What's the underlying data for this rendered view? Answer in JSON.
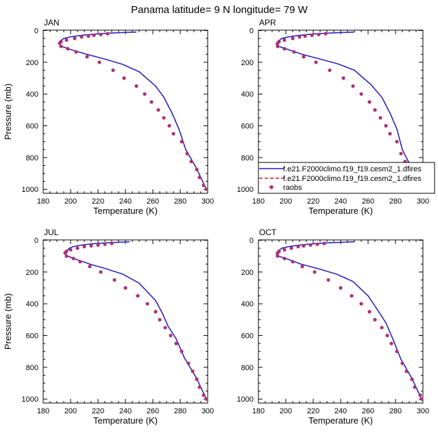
{
  "title": "Panama  latitude= 9 N longitude= 79 W",
  "colors": {
    "model1": "#1f1fbf",
    "model2": "#e01010",
    "obs": "#b03070",
    "axis": "#000000"
  },
  "legend": {
    "entries": [
      {
        "label": "f.e21.F2000climo.f19_f19.cesm2_1.dfires",
        "style": "solid",
        "color": "#1f1fbf"
      },
      {
        "label": "f.e21.F2000climo.f19_f19.cesm2_1.dfires",
        "style": "dashed",
        "color": "#e01010"
      },
      {
        "label": "raobs",
        "style": "dot",
        "color": "#b03070"
      }
    ]
  },
  "chart_data": [
    {
      "type": "line",
      "panel": "JAN",
      "xlabel": "Temperature (K)",
      "ylabel": "Pressure (mb)",
      "xlim": [
        180,
        300
      ],
      "ylim": [
        1025,
        0
      ],
      "xticks": [
        180,
        200,
        220,
        240,
        260,
        280,
        300
      ],
      "yticks": [
        0,
        200,
        400,
        600,
        800,
        1000
      ],
      "model": [
        [
          248,
          10
        ],
        [
          238,
          13
        ],
        [
          228,
          17
        ],
        [
          218,
          22
        ],
        [
          208,
          30
        ],
        [
          200,
          40
        ],
        [
          195,
          50
        ],
        [
          192,
          70
        ],
        [
          192,
          87
        ],
        [
          193,
          98
        ],
        [
          200,
          120
        ],
        [
          212,
          150
        ],
        [
          225,
          180
        ],
        [
          238,
          213
        ],
        [
          250,
          260
        ],
        [
          262,
          350
        ],
        [
          268,
          420
        ],
        [
          274,
          520
        ],
        [
          279,
          620
        ],
        [
          284,
          750
        ],
        [
          292,
          870
        ],
        [
          299,
          1000
        ]
      ],
      "obs": [
        [
          227,
          20
        ],
        [
          222,
          25
        ],
        [
          217,
          30
        ],
        [
          213,
          35
        ],
        [
          208,
          40
        ],
        [
          203,
          50
        ],
        [
          197,
          60
        ],
        [
          193,
          70
        ],
        [
          192,
          80
        ],
        [
          193,
          100
        ],
        [
          198,
          115
        ],
        [
          204,
          135
        ],
        [
          212,
          165
        ],
        [
          221,
          200
        ],
        [
          231,
          250
        ],
        [
          239,
          300
        ],
        [
          248,
          350
        ],
        [
          254,
          400
        ],
        [
          259,
          450
        ],
        [
          264,
          500
        ],
        [
          268,
          550
        ],
        [
          272,
          600
        ],
        [
          275,
          650
        ],
        [
          281,
          700
        ],
        [
          285,
          775
        ],
        [
          288,
          825
        ],
        [
          292,
          875
        ],
        [
          294,
          925
        ],
        [
          297,
          975
        ],
        [
          299,
          1000
        ]
      ]
    },
    {
      "type": "line",
      "panel": "APR",
      "xlabel": "Temperature (K)",
      "ylabel": "",
      "xlim": [
        180,
        300
      ],
      "ylim": [
        1025,
        0
      ],
      "xticks": [
        180,
        200,
        220,
        240,
        260,
        280,
        300
      ],
      "yticks": [
        0,
        200,
        400,
        600,
        800,
        1000
      ],
      "model": [
        [
          250,
          10
        ],
        [
          240,
          13
        ],
        [
          230,
          17
        ],
        [
          220,
          22
        ],
        [
          210,
          30
        ],
        [
          202,
          40
        ],
        [
          197,
          50
        ],
        [
          194,
          70
        ],
        [
          193,
          87
        ],
        [
          194,
          98
        ],
        [
          200,
          115
        ],
        [
          212,
          150
        ],
        [
          225,
          180
        ],
        [
          238,
          210
        ],
        [
          250,
          250
        ],
        [
          262,
          340
        ],
        [
          270,
          420
        ],
        [
          276,
          520
        ],
        [
          281,
          620
        ],
        [
          285,
          750
        ],
        [
          292,
          870
        ],
        [
          299,
          1000
        ]
      ],
      "obs": [
        [
          229,
          20
        ],
        [
          224,
          25
        ],
        [
          219,
          30
        ],
        [
          214,
          35
        ],
        [
          210,
          40
        ],
        [
          205,
          50
        ],
        [
          199,
          60
        ],
        [
          195,
          70
        ],
        [
          194,
          80
        ],
        [
          194,
          100
        ],
        [
          199,
          115
        ],
        [
          206,
          135
        ],
        [
          213,
          165
        ],
        [
          222,
          200
        ],
        [
          232,
          250
        ],
        [
          242,
          300
        ],
        [
          249,
          350
        ],
        [
          255,
          400
        ],
        [
          261,
          450
        ],
        [
          265,
          500
        ],
        [
          269,
          550
        ],
        [
          273,
          600
        ],
        [
          276,
          650
        ],
        [
          281,
          700
        ],
        [
          284,
          775
        ],
        [
          287,
          825
        ],
        [
          291,
          875
        ],
        [
          295,
          925
        ],
        [
          298,
          975
        ],
        [
          299,
          1000
        ]
      ]
    },
    {
      "type": "line",
      "panel": "JUL",
      "xlabel": "Temperature (K)",
      "ylabel": "Pressure (mb)",
      "xlim": [
        180,
        300
      ],
      "ylim": [
        1025,
        0
      ],
      "xticks": [
        180,
        200,
        220,
        240,
        260,
        280,
        300
      ],
      "yticks": [
        0,
        200,
        400,
        600,
        800,
        1000
      ],
      "model": [
        [
          243,
          10
        ],
        [
          234,
          13
        ],
        [
          225,
          17
        ],
        [
          216,
          22
        ],
        [
          208,
          30
        ],
        [
          202,
          40
        ],
        [
          199,
          50
        ],
        [
          197,
          70
        ],
        [
          196,
          87
        ],
        [
          198,
          100
        ],
        [
          204,
          120
        ],
        [
          214,
          150
        ],
        [
          226,
          180
        ],
        [
          238,
          213
        ],
        [
          250,
          270
        ],
        [
          262,
          380
        ],
        [
          267,
          460
        ],
        [
          271,
          540
        ],
        [
          277,
          620
        ],
        [
          283,
          740
        ],
        [
          292,
          870
        ],
        [
          299,
          1000
        ]
      ],
      "obs": [
        [
          230,
          20
        ],
        [
          225,
          25
        ],
        [
          220,
          30
        ],
        [
          215,
          35
        ],
        [
          210,
          40
        ],
        [
          205,
          50
        ],
        [
          200,
          60
        ],
        [
          197,
          70
        ],
        [
          196,
          80
        ],
        [
          197,
          100
        ],
        [
          202,
          115
        ],
        [
          207,
          135
        ],
        [
          214,
          165
        ],
        [
          222,
          200
        ],
        [
          232,
          250
        ],
        [
          240,
          300
        ],
        [
          249,
          350
        ],
        [
          256,
          400
        ],
        [
          262,
          450
        ],
        [
          265,
          500
        ],
        [
          269,
          550
        ],
        [
          273,
          600
        ],
        [
          277,
          650
        ],
        [
          281,
          700
        ],
        [
          286,
          775
        ],
        [
          289,
          825
        ],
        [
          292,
          875
        ],
        [
          294,
          925
        ],
        [
          297,
          975
        ],
        [
          299,
          1000
        ]
      ]
    },
    {
      "type": "line",
      "panel": "OCT",
      "xlabel": "Temperature (K)",
      "ylabel": "",
      "xlim": [
        180,
        300
      ],
      "ylim": [
        1025,
        0
      ],
      "xticks": [
        180,
        200,
        220,
        240,
        260,
        280,
        300
      ],
      "yticks": [
        0,
        200,
        400,
        600,
        800,
        1000
      ],
      "model": [
        [
          250,
          10
        ],
        [
          240,
          13
        ],
        [
          230,
          17
        ],
        [
          220,
          22
        ],
        [
          210,
          30
        ],
        [
          202,
          40
        ],
        [
          197,
          50
        ],
        [
          194,
          70
        ],
        [
          193,
          87
        ],
        [
          194,
          98
        ],
        [
          200,
          115
        ],
        [
          211,
          150
        ],
        [
          224,
          180
        ],
        [
          237,
          213
        ],
        [
          249,
          260
        ],
        [
          260,
          350
        ],
        [
          267,
          440
        ],
        [
          273,
          520
        ],
        [
          278,
          620
        ],
        [
          284,
          750
        ],
        [
          292,
          870
        ],
        [
          299,
          1000
        ]
      ],
      "obs": [
        [
          228,
          20
        ],
        [
          223,
          25
        ],
        [
          218,
          30
        ],
        [
          213,
          35
        ],
        [
          209,
          40
        ],
        [
          204,
          50
        ],
        [
          199,
          60
        ],
        [
          195,
          70
        ],
        [
          194,
          80
        ],
        [
          194,
          100
        ],
        [
          199,
          115
        ],
        [
          205,
          135
        ],
        [
          212,
          165
        ],
        [
          221,
          200
        ],
        [
          231,
          250
        ],
        [
          240,
          300
        ],
        [
          248,
          350
        ],
        [
          255,
          400
        ],
        [
          261,
          450
        ],
        [
          265,
          500
        ],
        [
          270,
          550
        ],
        [
          274,
          600
        ],
        [
          277,
          650
        ],
        [
          281,
          700
        ],
        [
          285,
          775
        ],
        [
          288,
          825
        ],
        [
          292,
          875
        ],
        [
          294,
          925
        ],
        [
          298,
          975
        ],
        [
          299,
          1000
        ]
      ]
    }
  ]
}
